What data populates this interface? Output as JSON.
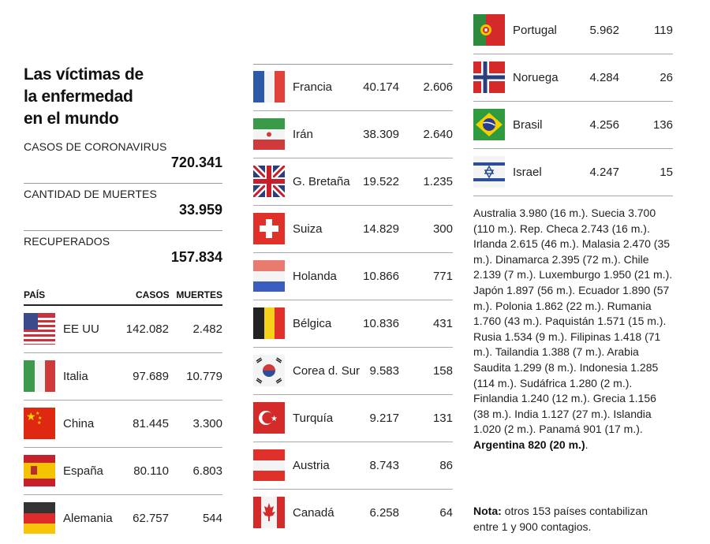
{
  "title_lines": [
    "Las víctimas de",
    "la enfermedad",
    "en el mundo"
  ],
  "stats": [
    {
      "label": "CASOS DE CORONAVIRUS",
      "value": "720.341"
    },
    {
      "label": "CANTIDAD DE MUERTES",
      "value": "33.959"
    },
    {
      "label": "RECUPERADOS",
      "value": "157.834"
    }
  ],
  "table_headers": {
    "country": "PAÍS",
    "cases": "CASOS",
    "deaths": "MUERTES"
  },
  "col1": [
    {
      "country": "EE UU",
      "cases": "142.082",
      "deaths": "2.482",
      "flag": "usa-flag-icon"
    },
    {
      "country": "Italia",
      "cases": "97.689",
      "deaths": "10.779",
      "flag": "italy-flag-icon"
    },
    {
      "country": "China",
      "cases": "81.445",
      "deaths": "3.300",
      "flag": "china-flag-icon"
    },
    {
      "country": "España",
      "cases": "80.110",
      "deaths": "6.803",
      "flag": "spain-flag-icon"
    },
    {
      "country": "Alemania",
      "cases": "62.757",
      "deaths": "544",
      "flag": "germany-flag-icon"
    }
  ],
  "col2": [
    {
      "country": "Francia",
      "cases": "40.174",
      "deaths": "2.606",
      "flag": "france-flag-icon"
    },
    {
      "country": "Irán",
      "cases": "38.309",
      "deaths": "2.640",
      "flag": "iran-flag-icon"
    },
    {
      "country": "G. Bretaña",
      "cases": "19.522",
      "deaths": "1.235",
      "flag": "uk-flag-icon"
    },
    {
      "country": "Suiza",
      "cases": "14.829",
      "deaths": "300",
      "flag": "switzerland-flag-icon"
    },
    {
      "country": "Holanda",
      "cases": "10.866",
      "deaths": "771",
      "flag": "netherlands-flag-icon"
    },
    {
      "country": "Bélgica",
      "cases": "10.836",
      "deaths": "431",
      "flag": "belgium-flag-icon"
    },
    {
      "country": "Corea d. Sur",
      "cases": "9.583",
      "deaths": "158",
      "flag": "south-korea-flag-icon"
    },
    {
      "country": "Turquía",
      "cases": "9.217",
      "deaths": "131",
      "flag": "turkey-flag-icon"
    },
    {
      "country": "Austria",
      "cases": "8.743",
      "deaths": "86",
      "flag": "austria-flag-icon"
    },
    {
      "country": "Canadá",
      "cases": "6.258",
      "deaths": "64",
      "flag": "canada-flag-icon"
    }
  ],
  "col3": [
    {
      "country": "Portugal",
      "cases": "5.962",
      "deaths": "119",
      "flag": "portugal-flag-icon"
    },
    {
      "country": "Noruega",
      "cases": "4.284",
      "deaths": "26",
      "flag": "norway-flag-icon"
    },
    {
      "country": "Brasil",
      "cases": "4.256",
      "deaths": "136",
      "flag": "brazil-flag-icon"
    },
    {
      "country": "Israel",
      "cases": "4.247",
      "deaths": "15",
      "flag": "israel-flag-icon"
    }
  ],
  "others_text": "Australia 3.980 (16 m.). Suecia 3.700 (110 m.). Rep. Checa 2.743 (16 m.). Irlanda 2.615 (46 m.). Malasia 2.470 (35 m.). Dinamarca 2.395 (72 m.). Chile 2.139 (7 m.). Luxemburgo 1.950 (21 m.). Japón 1.897 (56 m.). Ecuador 1.890 (57 m.). Polonia 1.862 (22 m.). Rumania 1.760 (43 m.). Paquistán 1.571 (15 m.). Rusia 1.534 (9 m.). Filipinas 1.418 (71 m.). Tailandia 1.388 (7 m.). Arabia Saudita 1.299 (8 m.). Indonesia 1.285 (114 m.). Sudáfrica 1.280 (2 m.). Finlandia 1.240 (12 m.). Grecia 1.156 (38 m.). India 1.127 (27 m.). Islandia 1.020 (2 m.). Panamá 901 (17 m.).",
  "others_bold": "Argentina 820 (20 m.)",
  "others_end": ".",
  "note_label": "Nota:",
  "note_text": "otros 153 países contabilizan entre 1 y 900 contagios."
}
